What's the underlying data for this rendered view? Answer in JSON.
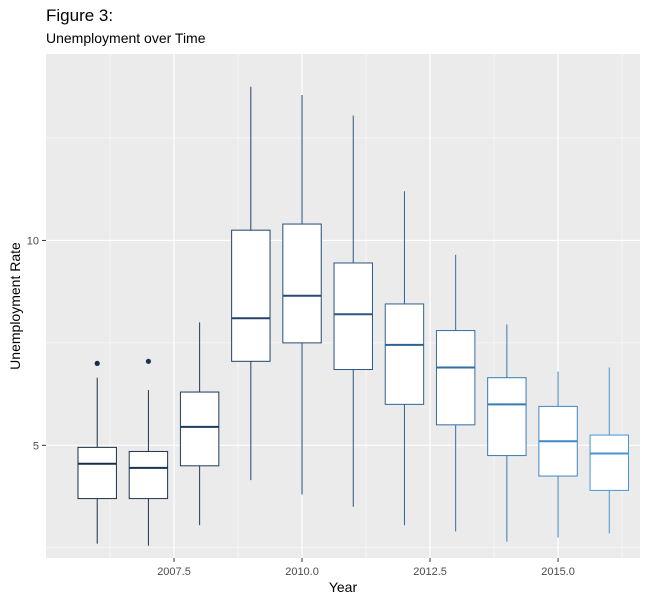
{
  "header": {
    "title": "Figure 3:",
    "subtitle": "Unemployment over Time"
  },
  "chart_data": {
    "type": "boxplot",
    "xlabel": "Year",
    "ylabel": "Unemployment Rate",
    "x_ticks": [
      2007.5,
      2010.0,
      2012.5,
      2015.0
    ],
    "x_tick_labels": [
      "2007.5",
      "2010.0",
      "2012.5",
      "2015.0"
    ],
    "y_ticks": [
      5,
      10
    ],
    "y_tick_labels": [
      "5",
      "10"
    ],
    "xlim": [
      2005.0,
      2016.6
    ],
    "ylim": [
      2.25,
      14.55
    ],
    "background": "#ebebeb",
    "grid": true,
    "boxes": [
      {
        "year": 2006,
        "min": 2.6,
        "q1": 3.7,
        "median": 4.55,
        "q3": 4.95,
        "max": 6.65,
        "outliers": [
          7.0
        ],
        "color": "#1a2e45"
      },
      {
        "year": 2007,
        "min": 2.55,
        "q1": 3.7,
        "median": 4.45,
        "q3": 4.85,
        "max": 6.35,
        "outliers": [
          7.05
        ],
        "color": "#1c3350"
      },
      {
        "year": 2008,
        "min": 3.05,
        "q1": 4.5,
        "median": 5.45,
        "q3": 6.3,
        "max": 8.0,
        "outliers": [],
        "color": "#1f3a5c"
      },
      {
        "year": 2009,
        "min": 4.15,
        "q1": 7.05,
        "median": 8.1,
        "q3": 10.25,
        "max": 13.75,
        "outliers": [],
        "color": "#234468"
      },
      {
        "year": 2010,
        "min": 3.8,
        "q1": 7.5,
        "median": 8.65,
        "q3": 10.4,
        "max": 13.55,
        "outliers": [],
        "color": "#264d76"
      },
      {
        "year": 2011,
        "min": 3.5,
        "q1": 6.85,
        "median": 8.2,
        "q3": 9.45,
        "max": 13.05,
        "outliers": [],
        "color": "#2a5784"
      },
      {
        "year": 2012,
        "min": 3.05,
        "q1": 6.0,
        "median": 7.45,
        "q3": 8.45,
        "max": 11.2,
        "outliers": [],
        "color": "#2e6293"
      },
      {
        "year": 2013,
        "min": 2.9,
        "q1": 5.5,
        "median": 6.9,
        "q3": 7.8,
        "max": 9.65,
        "outliers": [],
        "color": "#326ea3"
      },
      {
        "year": 2014,
        "min": 2.65,
        "q1": 4.75,
        "median": 6.0,
        "q3": 6.65,
        "max": 7.95,
        "outliers": [],
        "color": "#387bb3"
      },
      {
        "year": 2015,
        "min": 2.75,
        "q1": 4.25,
        "median": 5.1,
        "q3": 5.95,
        "max": 6.8,
        "outliers": [],
        "color": "#3e88c4"
      },
      {
        "year": 2016,
        "min": 2.85,
        "q1": 3.9,
        "median": 4.8,
        "q3": 5.25,
        "max": 6.9,
        "outliers": [],
        "color": "#4596d6"
      }
    ]
  }
}
